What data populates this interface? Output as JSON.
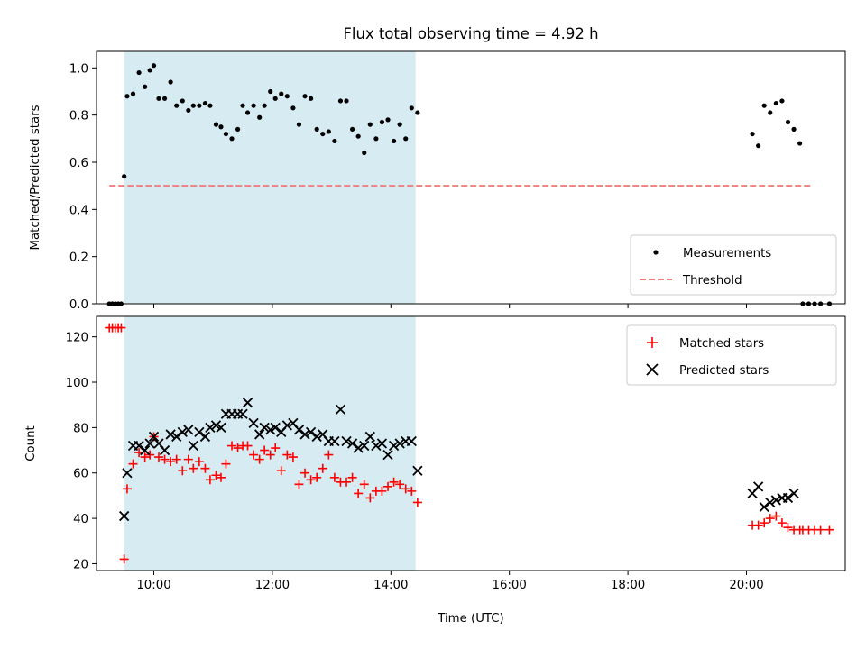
{
  "figure": {
    "title": "Flux total observing time = 4.92 h",
    "xlabel": "Time (UTC)",
    "colors": {
      "highlight": "#add8e6",
      "measurements": "#000000",
      "threshold": "#f08080",
      "matched": "#ff0000",
      "predicted": "#000000"
    }
  },
  "chart_data": [
    {
      "type": "scatter",
      "ylabel": "Matched/Predicted stars",
      "xlim": [
        "09:02",
        "21:40"
      ],
      "ylim": [
        0,
        1.07
      ],
      "x_ticks": [
        "10:00",
        "12:00",
        "14:00",
        "16:00",
        "18:00",
        "20:00"
      ],
      "y_ticks": [
        "0.0",
        "0.2",
        "0.4",
        "0.6",
        "0.8",
        "1.0"
      ],
      "x_ticklabels_shown": false,
      "legend_position": "lower-right",
      "legend": [
        "Measurements",
        "Threshold"
      ],
      "highlight_span": [
        "09:30",
        "14:25"
      ],
      "threshold": {
        "name": "Threshold",
        "value": 0.5,
        "x_range": [
          "09:15",
          "21:05"
        ]
      },
      "series": [
        {
          "name": "Measurements",
          "marker": "dot",
          "x": [
            "09:15",
            "09:18",
            "09:21",
            "09:24",
            "09:27",
            "09:30",
            "09:33",
            "09:39",
            "09:45",
            "09:51",
            "09:56",
            "10:00",
            "10:05",
            "10:11",
            "10:17",
            "10:23",
            "10:29",
            "10:35",
            "10:40",
            "10:46",
            "10:52",
            "10:57",
            "11:03",
            "11:08",
            "11:13",
            "11:19",
            "11:25",
            "11:30",
            "11:35",
            "11:41",
            "11:47",
            "11:52",
            "11:58",
            "12:03",
            "12:09",
            "12:15",
            "12:21",
            "12:27",
            "12:33",
            "12:39",
            "12:45",
            "12:51",
            "12:57",
            "13:03",
            "13:09",
            "13:15",
            "13:21",
            "13:27",
            "13:33",
            "13:39",
            "13:45",
            "13:51",
            "13:57",
            "14:03",
            "14:09",
            "14:15",
            "14:21",
            "14:27",
            "20:06",
            "20:12",
            "20:18",
            "20:24",
            "20:30",
            "20:36",
            "20:42",
            "20:48",
            "20:54",
            "20:57",
            "21:03",
            "21:09",
            "21:15",
            "21:24"
          ],
          "y": [
            0.0,
            0.0,
            0.0,
            0.0,
            0.0,
            0.54,
            0.88,
            0.89,
            0.98,
            0.92,
            0.99,
            1.01,
            0.87,
            0.87,
            0.94,
            0.84,
            0.86,
            0.82,
            0.84,
            0.84,
            0.85,
            0.84,
            0.76,
            0.75,
            0.72,
            0.7,
            0.74,
            0.84,
            0.81,
            0.84,
            0.79,
            0.84,
            0.9,
            0.87,
            0.89,
            0.88,
            0.83,
            0.76,
            0.88,
            0.87,
            0.74,
            0.72,
            0.73,
            0.69,
            0.86,
            0.86,
            0.74,
            0.71,
            0.64,
            0.76,
            0.7,
            0.77,
            0.78,
            0.69,
            0.76,
            0.7,
            0.83,
            0.81,
            0.72,
            0.67,
            0.84,
            0.81,
            0.85,
            0.86,
            0.77,
            0.74,
            0.68,
            0.0,
            0.0,
            0.0,
            0.0,
            0.0
          ]
        }
      ]
    },
    {
      "type": "scatter",
      "ylabel": "Count",
      "xlabel": "Time (UTC)",
      "xlim": [
        "09:02",
        "21:40"
      ],
      "ylim": [
        17,
        129
      ],
      "x_ticks": [
        "10:00",
        "12:00",
        "14:00",
        "16:00",
        "18:00",
        "20:00"
      ],
      "y_ticks": [
        "20",
        "40",
        "60",
        "80",
        "100",
        "120"
      ],
      "legend_position": "upper-right",
      "legend": [
        "Matched stars",
        "Predicted stars"
      ],
      "highlight_span": [
        "09:30",
        "14:25"
      ],
      "series": [
        {
          "name": "Matched stars",
          "marker": "plus",
          "x": [
            "09:15",
            "09:18",
            "09:21",
            "09:24",
            "09:27",
            "09:30",
            "09:33",
            "09:39",
            "09:45",
            "09:51",
            "09:56",
            "10:00",
            "10:05",
            "10:11",
            "10:17",
            "10:23",
            "10:29",
            "10:35",
            "10:40",
            "10:46",
            "10:52",
            "10:57",
            "11:03",
            "11:08",
            "11:13",
            "11:19",
            "11:25",
            "11:30",
            "11:35",
            "11:41",
            "11:47",
            "11:52",
            "11:58",
            "12:03",
            "12:09",
            "12:15",
            "12:21",
            "12:27",
            "12:33",
            "12:39",
            "12:45",
            "12:51",
            "12:57",
            "13:03",
            "13:09",
            "13:15",
            "13:21",
            "13:27",
            "13:33",
            "13:39",
            "13:45",
            "13:51",
            "13:57",
            "14:03",
            "14:09",
            "14:15",
            "14:21",
            "14:27",
            "20:06",
            "20:12",
            "20:18",
            "20:24",
            "20:30",
            "20:36",
            "20:42",
            "20:48",
            "20:54",
            "20:57",
            "21:03",
            "21:09",
            "21:15",
            "21:24"
          ],
          "y": [
            124,
            124,
            124,
            124,
            124,
            22,
            53,
            64,
            69,
            67,
            68,
            76,
            67,
            66,
            65,
            66,
            61,
            66,
            62,
            65,
            62,
            57,
            59,
            58,
            64,
            72,
            71,
            72,
            72,
            68,
            66,
            70,
            68,
            71,
            61,
            68,
            67,
            55,
            60,
            57,
            58,
            62,
            68,
            58,
            56,
            56,
            58,
            51,
            55,
            49,
            52,
            52,
            54,
            56,
            55,
            53,
            52,
            47,
            37,
            37,
            38,
            40,
            41,
            38,
            36,
            35,
            35,
            35,
            35,
            35,
            35,
            35
          ]
        },
        {
          "name": "Predicted stars",
          "marker": "x",
          "x": [
            "09:30",
            "09:33",
            "09:39",
            "09:45",
            "09:51",
            "09:56",
            "10:00",
            "10:05",
            "10:11",
            "10:17",
            "10:23",
            "10:29",
            "10:35",
            "10:40",
            "10:46",
            "10:52",
            "10:57",
            "11:03",
            "11:08",
            "11:13",
            "11:19",
            "11:25",
            "11:30",
            "11:35",
            "11:41",
            "11:47",
            "11:52",
            "11:58",
            "12:03",
            "12:09",
            "12:15",
            "12:21",
            "12:27",
            "12:33",
            "12:39",
            "12:45",
            "12:51",
            "12:57",
            "13:03",
            "13:09",
            "13:15",
            "13:21",
            "13:27",
            "13:33",
            "13:39",
            "13:45",
            "13:51",
            "13:57",
            "14:03",
            "14:09",
            "14:15",
            "14:21",
            "14:27",
            "20:06",
            "20:12",
            "20:18",
            "20:24",
            "20:30",
            "20:36",
            "20:42",
            "20:48"
          ],
          "y": [
            41,
            60,
            72,
            72,
            70,
            73,
            76,
            73,
            70,
            77,
            76,
            78,
            79,
            72,
            78,
            76,
            80,
            81,
            80,
            86,
            86,
            86,
            86,
            91,
            82,
            77,
            80,
            79,
            80,
            78,
            81,
            82,
            79,
            77,
            78,
            76,
            77,
            74,
            74,
            88,
            74,
            73,
            71,
            72,
            76,
            72,
            73,
            68,
            72,
            73,
            74,
            74,
            61,
            51,
            54,
            45,
            47,
            48,
            49,
            49,
            51
          ]
        }
      ]
    }
  ]
}
